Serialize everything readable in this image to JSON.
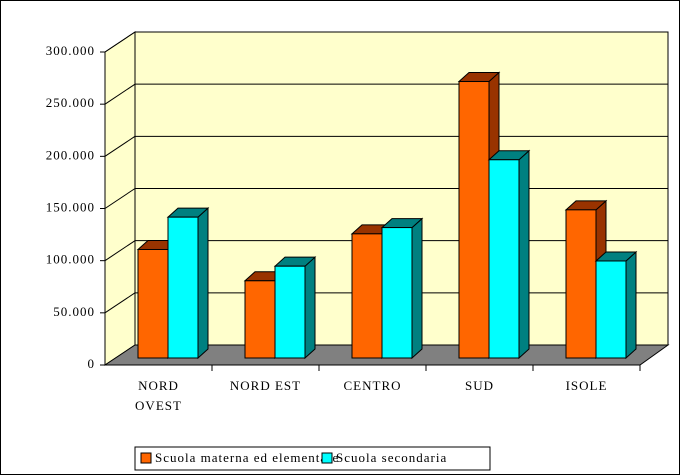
{
  "chart_data": {
    "type": "bar3d",
    "categories": [
      "NORD OVEST",
      "NORD EST",
      "CENTRO",
      "SUD",
      "ISOLE"
    ],
    "series": [
      {
        "name": "Scuola materna ed elementare",
        "color": "#ff6600",
        "values": [
          104000,
          74000,
          119000,
          265000,
          142000
        ]
      },
      {
        "name": "Scuola secondaria",
        "color": "#00ffff",
        "values": [
          135000,
          88000,
          125000,
          190000,
          93000
        ]
      }
    ],
    "ylim": [
      0,
      300000
    ],
    "yticks": [
      0,
      {
        "value": 50000,
        "label": "50.000"
      },
      {
        "value": 100000,
        "label": "100.000"
      },
      {
        "value": 150000,
        "label": "150.000"
      },
      {
        "value": 200000,
        "label": "200.000"
      },
      {
        "value": 250000,
        "label": "250.000"
      },
      {
        "value": 300000,
        "label": "300.000"
      }
    ],
    "grid": true,
    "legend": "bottom"
  }
}
